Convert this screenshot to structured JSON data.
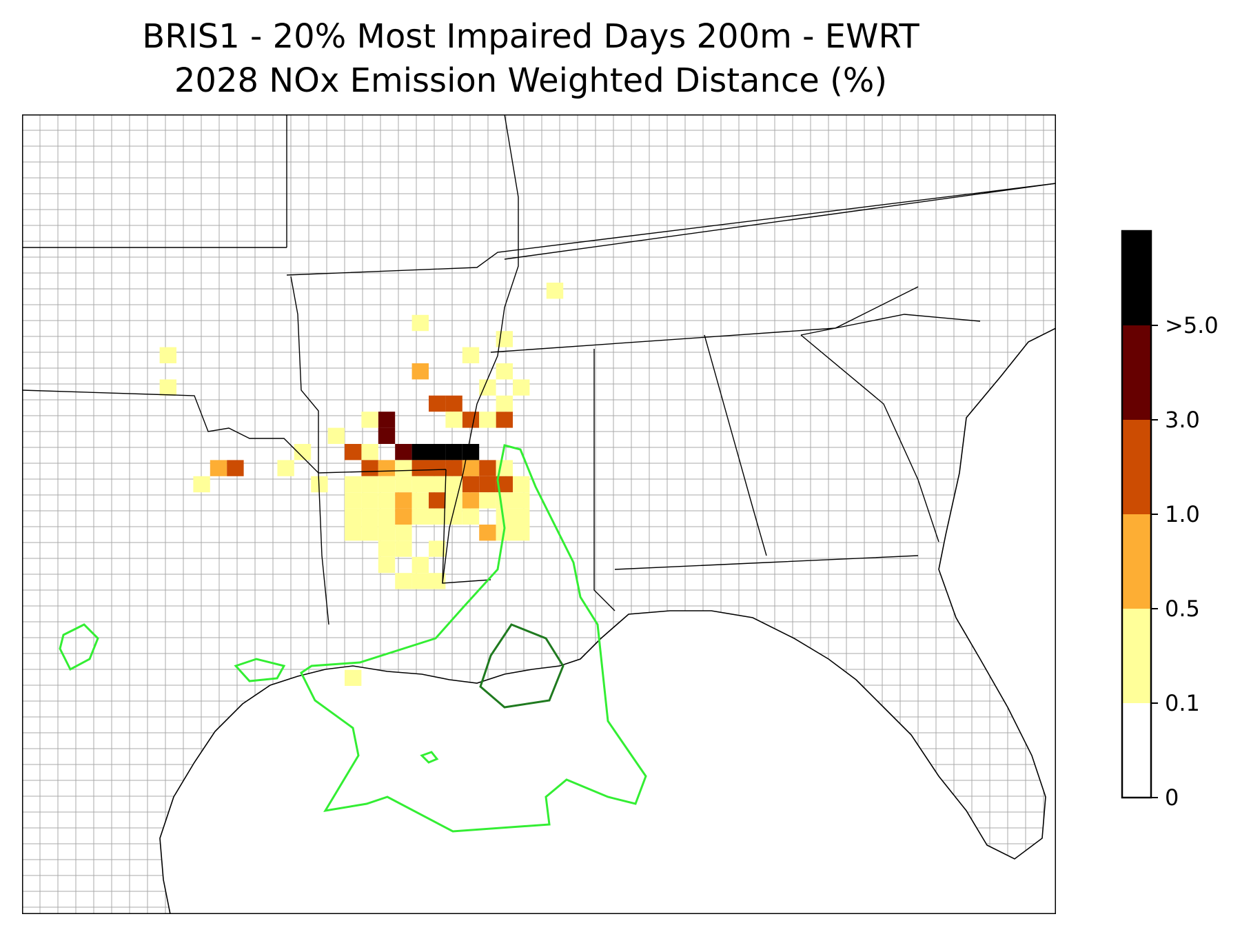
{
  "title": {
    "line1": "BRIS1 - 20% Most Impaired Days 200m - EWRT",
    "line2": "2028 NOx Emission Weighted Distance (%)"
  },
  "colorbar": {
    "ticks": [
      "0",
      "0.1",
      "0.5",
      "1.0",
      "3.0",
      ">5.0"
    ],
    "colors": [
      "#ffffff",
      "#ffff99",
      "#fdae34",
      "#cc4c02",
      "#660000",
      "#000000"
    ]
  },
  "map_data": {
    "grid_cell_size_m": "",
    "cells_note": "",
    "cells": [
      {
        "c": 20,
        "r": 34,
        "v": 1
      },
      {
        "c": 9,
        "r": 14,
        "v": 1
      },
      {
        "c": 9,
        "r": 16,
        "v": 1
      },
      {
        "c": 32,
        "r": 10,
        "v": 1
      },
      {
        "c": 29,
        "r": 13,
        "v": 1
      },
      {
        "c": 24,
        "r": 12,
        "v": 1
      },
      {
        "c": 24,
        "r": 15,
        "v": 2
      },
      {
        "c": 27,
        "r": 14,
        "v": 1
      },
      {
        "c": 25,
        "r": 17,
        "v": 3
      },
      {
        "c": 26,
        "r": 17,
        "v": 3
      },
      {
        "c": 27,
        "r": 18,
        "v": 3
      },
      {
        "c": 26,
        "r": 18,
        "v": 1
      },
      {
        "c": 29,
        "r": 18,
        "v": 3
      },
      {
        "c": 28,
        "r": 18,
        "v": 1
      },
      {
        "c": 28,
        "r": 16,
        "v": 1
      },
      {
        "c": 29,
        "r": 15,
        "v": 1
      },
      {
        "c": 29,
        "r": 17,
        "v": 1
      },
      {
        "c": 30,
        "r": 16,
        "v": 1
      },
      {
        "c": 22,
        "r": 18,
        "v": 4
      },
      {
        "c": 22,
        "r": 19,
        "v": 4
      },
      {
        "c": 21,
        "r": 18,
        "v": 1
      },
      {
        "c": 21,
        "r": 20,
        "v": 1
      },
      {
        "c": 19,
        "r": 19,
        "v": 1
      },
      {
        "c": 20,
        "r": 20,
        "v": 3
      },
      {
        "c": 21,
        "r": 21,
        "v": 3
      },
      {
        "c": 23,
        "r": 20,
        "v": 4
      },
      {
        "c": 24,
        "r": 20,
        "v": 5
      },
      {
        "c": 25,
        "r": 20,
        "v": 5
      },
      {
        "c": 26,
        "r": 20,
        "v": 5
      },
      {
        "c": 27,
        "r": 20,
        "v": 5
      },
      {
        "c": 22,
        "r": 21,
        "v": 2
      },
      {
        "c": 23,
        "r": 21,
        "v": 1
      },
      {
        "c": 24,
        "r": 21,
        "v": 3
      },
      {
        "c": 25,
        "r": 21,
        "v": 3
      },
      {
        "c": 26,
        "r": 21,
        "v": 3
      },
      {
        "c": 27,
        "r": 21,
        "v": 2
      },
      {
        "c": 28,
        "r": 21,
        "v": 3
      },
      {
        "c": 29,
        "r": 21,
        "v": 1
      },
      {
        "c": 27,
        "r": 22,
        "v": 3
      },
      {
        "c": 28,
        "r": 22,
        "v": 3
      },
      {
        "c": 29,
        "r": 22,
        "v": 3
      },
      {
        "c": 30,
        "r": 22,
        "v": 1
      },
      {
        "c": 17,
        "r": 20,
        "v": 1
      },
      {
        "c": 16,
        "r": 21,
        "v": 1
      },
      {
        "c": 18,
        "r": 22,
        "v": 1
      },
      {
        "c": 11,
        "r": 22,
        "v": 1
      },
      {
        "c": 12,
        "r": 21,
        "v": 2
      },
      {
        "c": 13,
        "r": 21,
        "v": 3
      },
      {
        "c": 20,
        "r": 22,
        "v": 1
      },
      {
        "c": 21,
        "r": 22,
        "v": 1
      },
      {
        "c": 22,
        "r": 22,
        "v": 1
      },
      {
        "c": 23,
        "r": 22,
        "v": 1
      },
      {
        "c": 24,
        "r": 22,
        "v": 1
      },
      {
        "c": 25,
        "r": 22,
        "v": 1
      },
      {
        "c": 26,
        "r": 22,
        "v": 1
      },
      {
        "c": 20,
        "r": 23,
        "v": 1
      },
      {
        "c": 21,
        "r": 23,
        "v": 1
      },
      {
        "c": 22,
        "r": 23,
        "v": 1
      },
      {
        "c": 23,
        "r": 23,
        "v": 2
      },
      {
        "c": 24,
        "r": 23,
        "v": 1
      },
      {
        "c": 25,
        "r": 23,
        "v": 3
      },
      {
        "c": 26,
        "r": 23,
        "v": 1
      },
      {
        "c": 27,
        "r": 23,
        "v": 2
      },
      {
        "c": 28,
        "r": 23,
        "v": 1
      },
      {
        "c": 29,
        "r": 23,
        "v": 1
      },
      {
        "c": 30,
        "r": 23,
        "v": 1
      },
      {
        "c": 20,
        "r": 24,
        "v": 1
      },
      {
        "c": 21,
        "r": 24,
        "v": 1
      },
      {
        "c": 22,
        "r": 24,
        "v": 1
      },
      {
        "c": 23,
        "r": 24,
        "v": 2
      },
      {
        "c": 24,
        "r": 24,
        "v": 1
      },
      {
        "c": 25,
        "r": 24,
        "v": 1
      },
      {
        "c": 26,
        "r": 24,
        "v": 1
      },
      {
        "c": 27,
        "r": 24,
        "v": 1
      },
      {
        "c": 29,
        "r": 24,
        "v": 1
      },
      {
        "c": 30,
        "r": 24,
        "v": 1
      },
      {
        "c": 20,
        "r": 25,
        "v": 1
      },
      {
        "c": 21,
        "r": 25,
        "v": 1
      },
      {
        "c": 22,
        "r": 25,
        "v": 1
      },
      {
        "c": 23,
        "r": 25,
        "v": 1
      },
      {
        "c": 28,
        "r": 25,
        "v": 2
      },
      {
        "c": 29,
        "r": 25,
        "v": 1
      },
      {
        "c": 30,
        "r": 25,
        "v": 1
      },
      {
        "c": 22,
        "r": 26,
        "v": 1
      },
      {
        "c": 23,
        "r": 26,
        "v": 1
      },
      {
        "c": 25,
        "r": 26,
        "v": 1
      },
      {
        "c": 22,
        "r": 27,
        "v": 1
      },
      {
        "c": 24,
        "r": 27,
        "v": 1
      },
      {
        "c": 23,
        "r": 28,
        "v": 1
      },
      {
        "c": 25,
        "r": 28,
        "v": 1
      },
      {
        "c": 24,
        "r": 28,
        "v": 1
      }
    ]
  }
}
